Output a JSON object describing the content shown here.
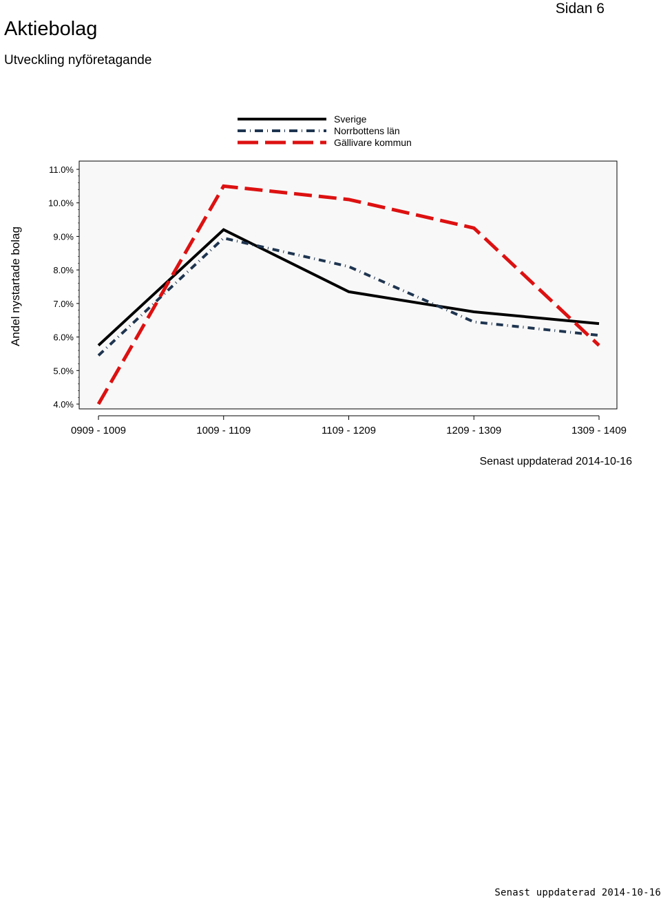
{
  "page": {
    "title": "Aktiebolag",
    "subtitle": "Utveckling nyföretagande",
    "page_number": "Sidan 6",
    "updated": "Senast uppdaterad 2014-10-16",
    "footer_stamp": "Senast uppdaterad 2014-10-16"
  },
  "chart_data": {
    "type": "line",
    "title": "",
    "xlabel": "",
    "ylabel": "Andel nystartade bolag",
    "categories": [
      "0909 - 1009",
      "1009 - 1109",
      "1109 - 1209",
      "1209 - 1309",
      "1309 - 1409"
    ],
    "ylim": [
      4.0,
      11.0
    ],
    "yticks": [
      4.0,
      5.0,
      6.0,
      7.0,
      8.0,
      9.0,
      10.0,
      11.0
    ],
    "ytick_labels": [
      "4.0%",
      "5.0%",
      "6.0%",
      "7.0%",
      "8.0%",
      "9.0%",
      "10.0%",
      "11.0%"
    ],
    "legend_position": "top-center",
    "grid": false,
    "series": [
      {
        "name": "Sverige",
        "color": "#000000",
        "style": "solid",
        "values": [
          5.75,
          9.2,
          7.35,
          6.75,
          6.4
        ]
      },
      {
        "name": "Norrbottens län",
        "color": "#1f3550",
        "style": "dashdot",
        "values": [
          5.45,
          8.95,
          8.1,
          6.45,
          6.05
        ]
      },
      {
        "name": "Gällivare kommun",
        "color": "#dd1111",
        "style": "dash",
        "values": [
          4.0,
          10.5,
          10.1,
          9.25,
          5.75
        ]
      }
    ]
  }
}
